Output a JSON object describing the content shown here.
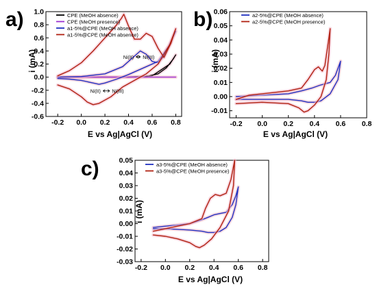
{
  "chart_data": [
    {
      "type": "line",
      "panel_label": "a)",
      "xlabel": "E vs Ag|AgCl (V)",
      "ylabel": "i (mA)",
      "xlim": [
        -0.3,
        0.85
      ],
      "ylim": [
        -0.6,
        1.0
      ],
      "xticks": [
        "-0.2",
        "0.0",
        "0.2",
        "0.4",
        "0.6",
        "0.8"
      ],
      "yticks": [
        "-0.6",
        "-0.4",
        "-0.2",
        "0.0",
        "0.2",
        "0.4",
        "0.6",
        "0.8",
        "1.0"
      ],
      "legend_position": "top-left",
      "annotations": [
        {
          "text": "Ni(II)",
          "x": 0.4,
          "y": 0.31
        },
        {
          "text": "Ni(III)",
          "x": 0.57,
          "y": 0.31
        },
        {
          "text": "Ni(II)",
          "x": 0.12,
          "y": -0.21
        },
        {
          "text": "Ni(III)",
          "x": 0.31,
          "y": -0.21
        }
      ],
      "series": [
        {
          "name": "CPE (MeOH absence)",
          "color": "#000000",
          "points": [
            [
              -0.2,
              0.0
            ],
            [
              0.0,
              0.0
            ],
            [
              0.2,
              0.0
            ],
            [
              0.4,
              0.0
            ],
            [
              0.55,
              0.01
            ],
            [
              0.65,
              0.05
            ],
            [
              0.72,
              0.14
            ],
            [
              0.78,
              0.28
            ],
            [
              0.8,
              0.34
            ],
            [
              0.75,
              0.2
            ],
            [
              0.6,
              0.02
            ],
            [
              0.4,
              0.0
            ],
            [
              0.0,
              0.0
            ],
            [
              -0.2,
              0.0
            ]
          ]
        },
        {
          "name": "CPE (MeOH presence)",
          "color": "#9b30d0",
          "points": [
            [
              -0.2,
              0.0
            ],
            [
              0.0,
              0.0
            ],
            [
              0.2,
              0.0
            ],
            [
              0.4,
              0.0
            ],
            [
              0.6,
              0.0
            ],
            [
              0.8,
              0.0
            ]
          ]
        },
        {
          "name": "a1-5%@CPE (MeOH absence)",
          "color": "#2030c0",
          "points": [
            [
              -0.2,
              0.0
            ],
            [
              0.0,
              0.01
            ],
            [
              0.2,
              0.05
            ],
            [
              0.35,
              0.16
            ],
            [
              0.45,
              0.32
            ],
            [
              0.5,
              0.4
            ],
            [
              0.55,
              0.35
            ],
            [
              0.6,
              0.24
            ],
            [
              0.65,
              0.22
            ],
            [
              0.7,
              0.32
            ],
            [
              0.76,
              0.55
            ],
            [
              0.8,
              0.7
            ],
            [
              0.75,
              0.5
            ],
            [
              0.65,
              0.24
            ],
            [
              0.5,
              0.12
            ],
            [
              0.4,
              0.04
            ],
            [
              0.3,
              -0.03
            ],
            [
              0.2,
              -0.09
            ],
            [
              0.15,
              -0.11
            ],
            [
              0.1,
              -0.09
            ],
            [
              0.0,
              -0.05
            ],
            [
              -0.1,
              -0.03
            ],
            [
              -0.2,
              -0.02
            ]
          ]
        },
        {
          "name": "a1-5%@CPE (MeOH absence)",
          "color": "#b02010",
          "points": [
            [
              -0.2,
              0.02
            ],
            [
              -0.1,
              0.1
            ],
            [
              0.0,
              0.22
            ],
            [
              0.1,
              0.4
            ],
            [
              0.2,
              0.6
            ],
            [
              0.3,
              0.8
            ],
            [
              0.34,
              0.9
            ],
            [
              0.36,
              0.96
            ],
            [
              0.4,
              0.78
            ],
            [
              0.45,
              0.58
            ],
            [
              0.5,
              0.58
            ],
            [
              0.55,
              0.67
            ],
            [
              0.6,
              0.62
            ],
            [
              0.65,
              0.44
            ],
            [
              0.7,
              0.3
            ],
            [
              0.76,
              0.52
            ],
            [
              0.8,
              0.74
            ],
            [
              0.75,
              0.5
            ],
            [
              0.65,
              0.2
            ],
            [
              0.55,
              0.05
            ],
            [
              0.45,
              -0.05
            ],
            [
              0.35,
              -0.15
            ],
            [
              0.25,
              -0.3
            ],
            [
              0.15,
              -0.4
            ],
            [
              0.1,
              -0.42
            ],
            [
              0.05,
              -0.38
            ],
            [
              0.0,
              -0.3
            ],
            [
              -0.1,
              -0.18
            ],
            [
              -0.2,
              -0.12
            ]
          ]
        }
      ]
    },
    {
      "type": "line",
      "panel_label": "b)",
      "xlabel": "E vs Ag|AgCl (V)",
      "ylabel": "i (mA)",
      "xlim": [
        -0.25,
        0.8
      ],
      "ylim": [
        -0.015,
        0.06
      ],
      "xticks": [
        "-0.2",
        "0.0",
        "0.2",
        "0.4",
        "0.6",
        "0.8"
      ],
      "yticks": [
        "-0.01",
        "0.00",
        "0.01",
        "0.02",
        "0.03",
        "0.04",
        "0.05",
        "0.06"
      ],
      "legend_position": "top-left",
      "series": [
        {
          "name": "a2-5%@CPE (MeOH absence)",
          "color": "#2030c0",
          "points": [
            [
              -0.2,
              0.0
            ],
            [
              0.0,
              0.001
            ],
            [
              0.2,
              0.002
            ],
            [
              0.3,
              0.004
            ],
            [
              0.38,
              0.006
            ],
            [
              0.44,
              0.008
            ],
            [
              0.48,
              0.009
            ],
            [
              0.52,
              0.01
            ],
            [
              0.56,
              0.015
            ],
            [
              0.6,
              0.025
            ],
            [
              0.58,
              0.012
            ],
            [
              0.52,
              0.002
            ],
            [
              0.45,
              -0.003
            ],
            [
              0.4,
              -0.004
            ],
            [
              0.35,
              -0.004
            ],
            [
              0.3,
              -0.003
            ],
            [
              0.2,
              -0.002
            ],
            [
              0.0,
              -0.002
            ],
            [
              -0.2,
              -0.002
            ]
          ]
        },
        {
          "name": "a2-5%@CPE (MeOH presence)",
          "color": "#b02010",
          "points": [
            [
              -0.2,
              -0.002
            ],
            [
              -0.1,
              0.001
            ],
            [
              0.0,
              0.002
            ],
            [
              0.1,
              0.003
            ],
            [
              0.2,
              0.004
            ],
            [
              0.3,
              0.006
            ],
            [
              0.35,
              0.012
            ],
            [
              0.4,
              0.019
            ],
            [
              0.43,
              0.021
            ],
            [
              0.46,
              0.018
            ],
            [
              0.48,
              0.022
            ],
            [
              0.5,
              0.035
            ],
            [
              0.52,
              0.048
            ],
            [
              0.51,
              0.03
            ],
            [
              0.49,
              0.012
            ],
            [
              0.45,
              0.0
            ],
            [
              0.4,
              -0.006
            ],
            [
              0.35,
              -0.01
            ],
            [
              0.32,
              -0.011
            ],
            [
              0.28,
              -0.008
            ],
            [
              0.2,
              -0.005
            ],
            [
              0.0,
              -0.004
            ],
            [
              -0.2,
              -0.005
            ]
          ]
        }
      ]
    },
    {
      "type": "line",
      "panel_label": "c)",
      "xlabel": "E vs Ag|AgCl (V)",
      "ylabel": "i (mA)",
      "xlim": [
        -0.25,
        0.85
      ],
      "ylim": [
        -0.03,
        0.05
      ],
      "xticks": [
        "-0.2",
        "0.0",
        "0.2",
        "0.4",
        "0.6",
        "0.8"
      ],
      "yticks": [
        "-0.03",
        "-0.02",
        "-0.01",
        "0.00",
        "0.01",
        "0.02",
        "0.03",
        "0.04",
        "0.05"
      ],
      "legend_position": "top-left",
      "series": [
        {
          "name": "a3-5%@CPE (MeOH absence)",
          "color": "#2030c0",
          "points": [
            [
              -0.1,
              -0.003
            ],
            [
              0.0,
              -0.002
            ],
            [
              0.1,
              -0.001
            ],
            [
              0.2,
              0.0
            ],
            [
              0.3,
              0.003
            ],
            [
              0.35,
              0.005
            ],
            [
              0.4,
              0.007
            ],
            [
              0.45,
              0.008
            ],
            [
              0.5,
              0.009
            ],
            [
              0.55,
              0.015
            ],
            [
              0.58,
              0.022
            ],
            [
              0.6,
              0.029
            ],
            [
              0.58,
              0.015
            ],
            [
              0.55,
              0.005
            ],
            [
              0.5,
              -0.003
            ],
            [
              0.45,
              -0.006
            ],
            [
              0.4,
              -0.007
            ],
            [
              0.35,
              -0.007
            ],
            [
              0.3,
              -0.006
            ],
            [
              0.2,
              -0.005
            ],
            [
              0.0,
              -0.004
            ],
            [
              -0.1,
              -0.004
            ]
          ]
        },
        {
          "name": "a3-5%@CPE (MeOH presence)",
          "color": "#b02010",
          "points": [
            [
              -0.1,
              -0.006
            ],
            [
              0.0,
              -0.004
            ],
            [
              0.1,
              -0.002
            ],
            [
              0.2,
              0.0
            ],
            [
              0.3,
              0.004
            ],
            [
              0.33,
              0.012
            ],
            [
              0.37,
              0.02
            ],
            [
              0.41,
              0.023
            ],
            [
              0.45,
              0.022
            ],
            [
              0.5,
              0.024
            ],
            [
              0.54,
              0.035
            ],
            [
              0.57,
              0.05
            ],
            [
              0.56,
              0.03
            ],
            [
              0.52,
              0.01
            ],
            [
              0.45,
              -0.003
            ],
            [
              0.38,
              -0.012
            ],
            [
              0.32,
              -0.017
            ],
            [
              0.28,
              -0.019
            ],
            [
              0.25,
              -0.018
            ],
            [
              0.2,
              -0.015
            ],
            [
              0.1,
              -0.012
            ],
            [
              0.0,
              -0.01
            ],
            [
              -0.1,
              -0.009
            ]
          ]
        }
      ]
    }
  ]
}
